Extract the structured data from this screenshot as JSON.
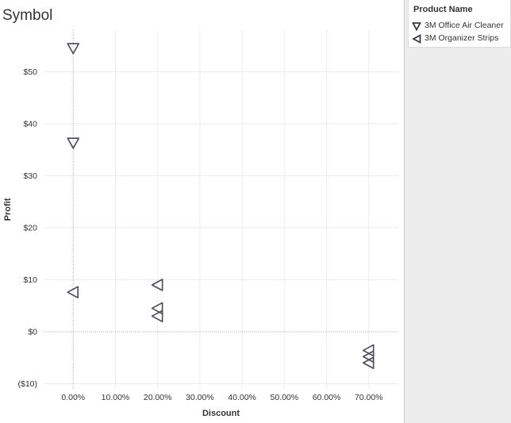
{
  "title": "Symbol",
  "legend": {
    "title": "Product Name",
    "items": [
      {
        "label": "3M Office Air Cleaner",
        "shape": "triangle-down"
      },
      {
        "label": "3M Organizer Strips",
        "shape": "triangle-left"
      }
    ]
  },
  "colors": {
    "marker": "#4a4a5a",
    "grid": "#ececec",
    "zero_line": "#a8a8a8",
    "legend_bg": "#ececec"
  },
  "chart_data": {
    "type": "scatter",
    "title": "Symbol",
    "xlabel": "Discount",
    "ylabel": "Profit",
    "xlim": [
      -0.07,
      0.77
    ],
    "ylim": [
      -11,
      58
    ],
    "x_ticks": [
      0,
      0.1,
      0.2,
      0.3,
      0.4,
      0.5,
      0.6,
      0.7
    ],
    "x_tick_labels": [
      "0.00%",
      "10.00%",
      "20.00%",
      "30.00%",
      "40.00%",
      "50.00%",
      "60.00%",
      "70.00%"
    ],
    "y_ticks": [
      -10,
      0,
      10,
      20,
      30,
      40,
      50
    ],
    "y_tick_labels": [
      "($10)",
      "$0",
      "$10",
      "$20",
      "$30",
      "$40",
      "$50"
    ],
    "grid": true,
    "legend_position": "top-right",
    "series": [
      {
        "name": "3M Office Air Cleaner",
        "marker": "triangle-down",
        "points": [
          {
            "x": 0,
            "y": 54.5
          },
          {
            "x": 0,
            "y": 36.3
          }
        ]
      },
      {
        "name": "3M Organizer Strips",
        "marker": "triangle-left",
        "points": [
          {
            "x": 0,
            "y": 7.6
          },
          {
            "x": 0.2,
            "y": 9.0
          },
          {
            "x": 0.2,
            "y": 4.5
          },
          {
            "x": 0.2,
            "y": 3.0
          },
          {
            "x": 0.7,
            "y": -3.6
          },
          {
            "x": 0.7,
            "y": -4.8
          },
          {
            "x": 0.7,
            "y": -6.0
          }
        ]
      }
    ]
  }
}
